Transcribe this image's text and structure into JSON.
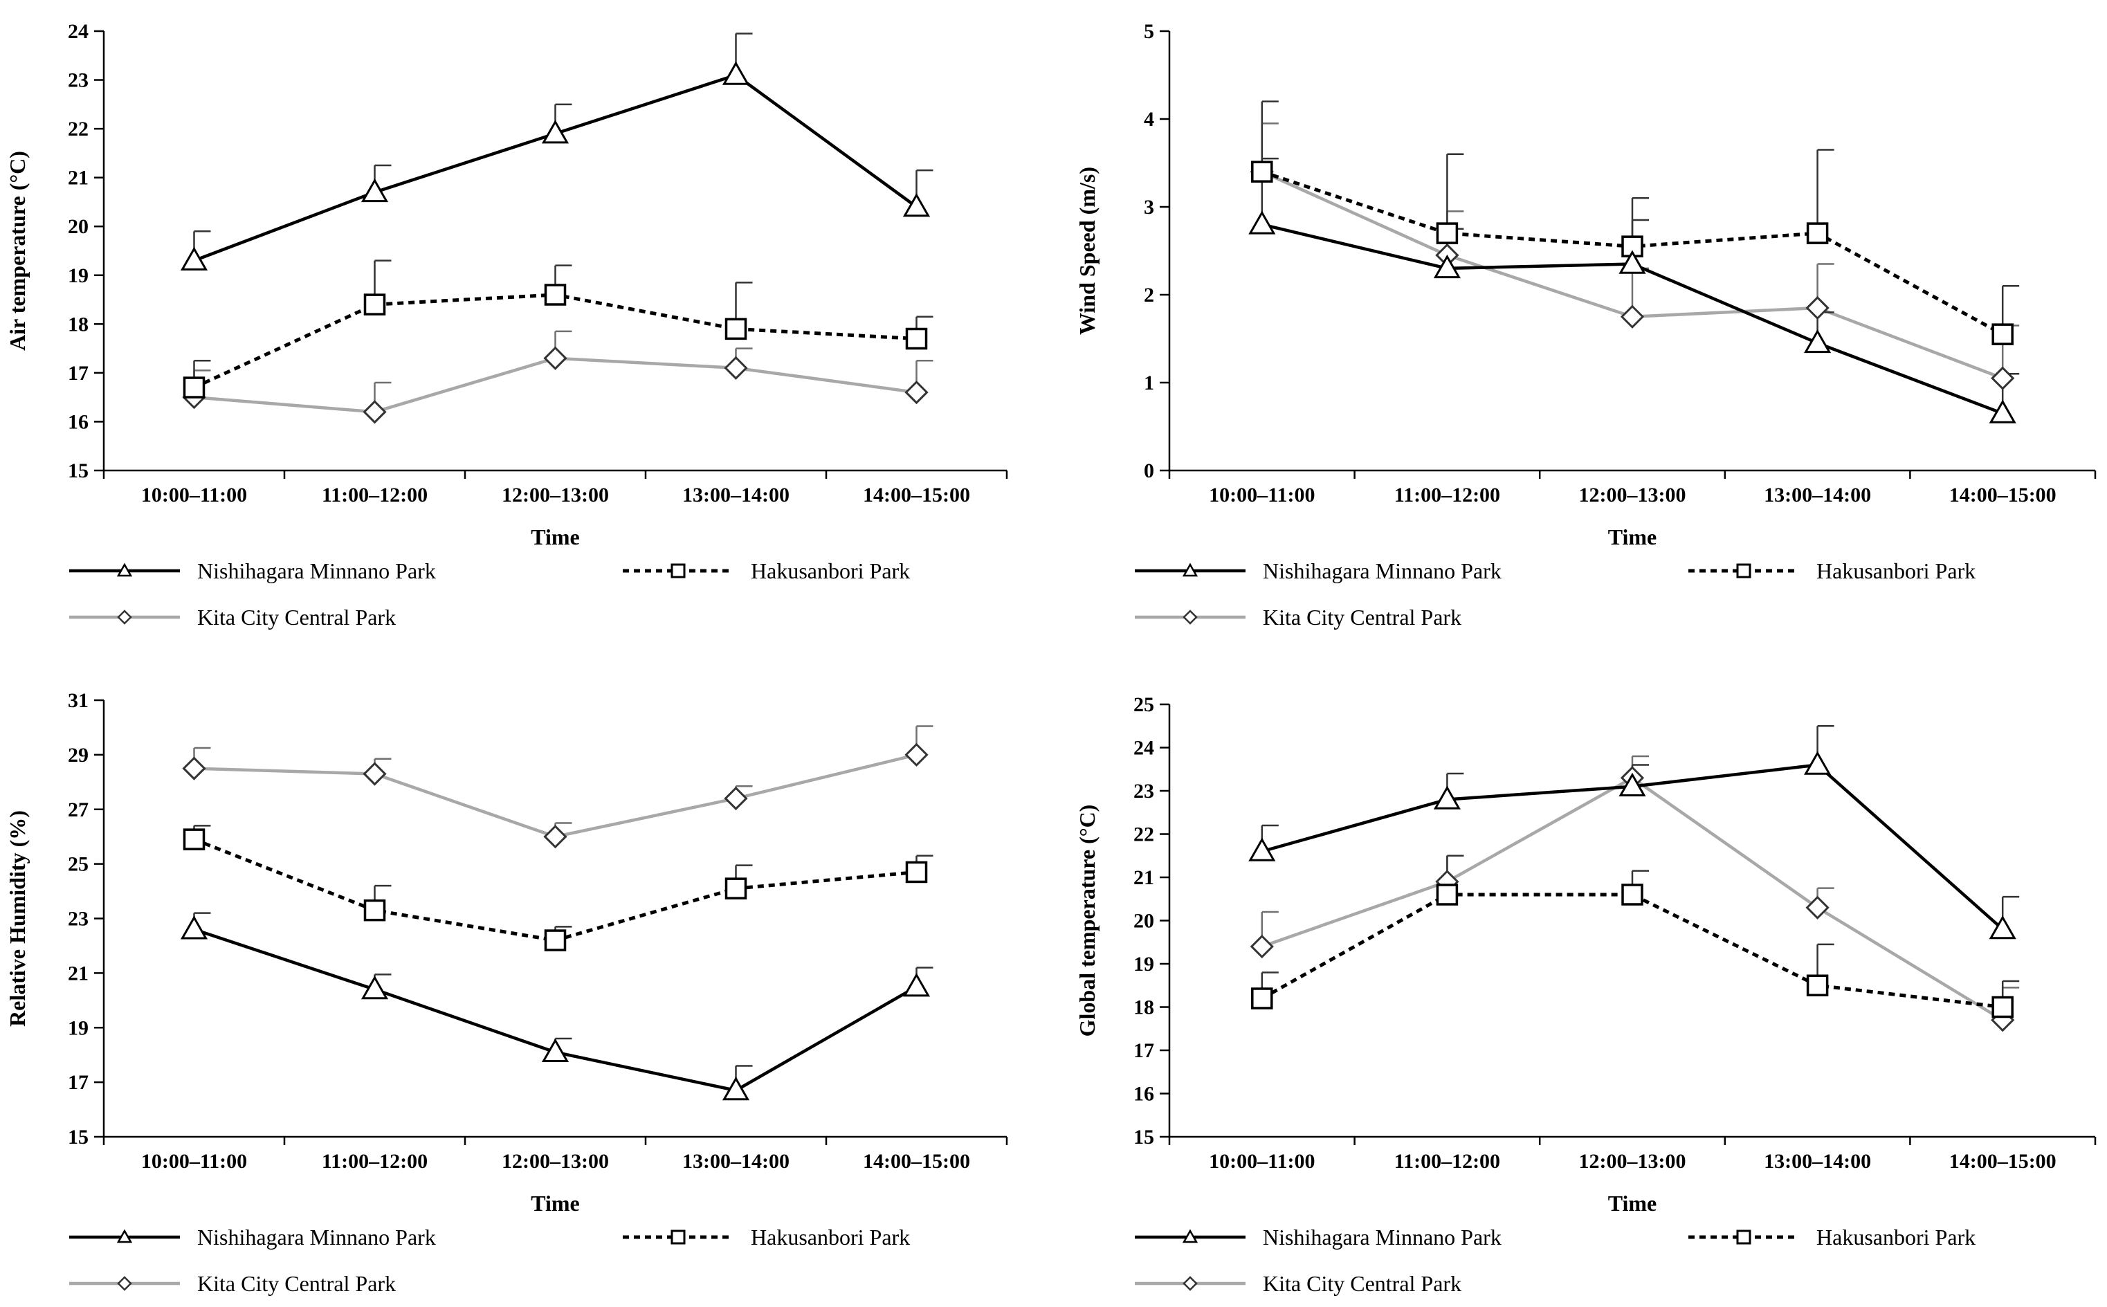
{
  "chart_data": [
    {
      "type": "line",
      "title": "",
      "xlabel": "Time",
      "ylabel": "Air temperature (°C)",
      "categories": [
        "10:00–11:00",
        "11:00–12:00",
        "12:00–13:00",
        "13:00–14:00",
        "14:00–15:00"
      ],
      "ylim": [
        15,
        24
      ],
      "yticks": [
        "15",
        "16",
        "17",
        "18",
        "19",
        "20",
        "21",
        "22",
        "23",
        "24"
      ],
      "series": [
        {
          "name": "Nishihagara Minnano Park",
          "values": [
            19.3,
            20.7,
            21.9,
            23.1,
            20.4
          ],
          "errors": [
            0.6,
            0.55,
            0.6,
            0.85,
            0.75
          ],
          "color": "#000000",
          "style": "solid",
          "marker": "triangle"
        },
        {
          "name": "Hakusanbori Park",
          "values": [
            16.7,
            18.4,
            18.6,
            17.9,
            17.7
          ],
          "errors": [
            0.55,
            0.9,
            0.6,
            0.95,
            0.45
          ],
          "color": "#000000",
          "style": "dotted",
          "marker": "square"
        },
        {
          "name": "Kita City Central Park",
          "values": [
            16.5,
            16.2,
            17.3,
            17.1,
            16.6
          ],
          "errors": [
            0.55,
            0.6,
            0.55,
            0.4,
            0.65
          ],
          "color": "#a8a8a8",
          "style": "solid",
          "marker": "diamond"
        }
      ]
    },
    {
      "type": "line",
      "title": "",
      "xlabel": "Time",
      "ylabel": "Wind Speed (m/s)",
      "categories": [
        "10:00–11:00",
        "11:00–12:00",
        "12:00–13:00",
        "13:00–14:00",
        "14:00–15:00"
      ],
      "ylim": [
        0,
        5
      ],
      "yticks": [
        "0",
        "1",
        "2",
        "3",
        "4",
        "5"
      ],
      "series": [
        {
          "name": "Nishihagara Minnano Park",
          "values": [
            2.8,
            2.3,
            2.35,
            1.45,
            0.65
          ],
          "errors": [
            0.75,
            0.45,
            0.5,
            0.35,
            0.45
          ],
          "color": "#000000",
          "style": "solid",
          "marker": "triangle"
        },
        {
          "name": "Hakusanbori Park",
          "values": [
            3.4,
            2.7,
            2.55,
            2.7,
            1.55
          ],
          "errors": [
            0.8,
            0.9,
            0.55,
            0.95,
            0.55
          ],
          "color": "#000000",
          "style": "dotted",
          "marker": "square"
        },
        {
          "name": "Kita City Central Park",
          "values": [
            3.4,
            2.45,
            1.75,
            1.85,
            1.05
          ],
          "errors": [
            0.55,
            0.5,
            0.55,
            0.5,
            0.6
          ],
          "color": "#a8a8a8",
          "style": "solid",
          "marker": "diamond"
        }
      ]
    },
    {
      "type": "line",
      "title": "",
      "xlabel": "Time",
      "ylabel": "Relative Humidity (%)",
      "categories": [
        "10:00–11:00",
        "11:00–12:00",
        "12:00–13:00",
        "13:00–14:00",
        "14:00–15:00"
      ],
      "ylim": [
        15,
        31
      ],
      "yticks": [
        "15",
        "17",
        "19",
        "21",
        "23",
        "25",
        "27",
        "29",
        "31"
      ],
      "series": [
        {
          "name": "Nishihagara Minnano Park",
          "values": [
            22.6,
            20.4,
            18.1,
            16.7,
            20.5
          ],
          "errors": [
            0.6,
            0.55,
            0.5,
            0.9,
            0.7
          ],
          "color": "#000000",
          "style": "solid",
          "marker": "triangle"
        },
        {
          "name": "Hakusanbori Park",
          "values": [
            25.9,
            23.3,
            22.2,
            24.1,
            24.7
          ],
          "errors": [
            0.5,
            0.9,
            0.5,
            0.85,
            0.6
          ],
          "color": "#000000",
          "style": "dotted",
          "marker": "square"
        },
        {
          "name": "Kita City Central Park",
          "values": [
            28.5,
            28.3,
            26.0,
            27.4,
            29.0
          ],
          "errors": [
            0.75,
            0.55,
            0.5,
            0.45,
            1.05
          ],
          "color": "#a8a8a8",
          "style": "solid",
          "marker": "diamond"
        }
      ]
    },
    {
      "type": "line",
      "title": "",
      "xlabel": "Time",
      "ylabel": "Global temperature (°C)",
      "categories": [
        "10:00–11:00",
        "11:00–12:00",
        "12:00–13:00",
        "13:00–14:00",
        "14:00–15:00"
      ],
      "ylim": [
        15,
        25
      ],
      "yticks": [
        "15",
        "16",
        "17",
        "18",
        "19",
        "20",
        "21",
        "22",
        "23",
        "24",
        "25"
      ],
      "series": [
        {
          "name": "Nishihagara Minnano Park",
          "values": [
            21.6,
            22.8,
            23.1,
            23.6,
            19.8
          ],
          "errors": [
            0.6,
            0.6,
            0.5,
            0.9,
            0.75
          ],
          "color": "#000000",
          "style": "solid",
          "marker": "triangle"
        },
        {
          "name": "Hakusanbori Park",
          "values": [
            18.2,
            20.6,
            20.6,
            18.5,
            18.0
          ],
          "errors": [
            0.6,
            0.9,
            0.55,
            0.95,
            0.6
          ],
          "color": "#000000",
          "style": "dotted",
          "marker": "square"
        },
        {
          "name": "Kita City Central Park",
          "values": [
            19.4,
            20.9,
            23.3,
            20.3,
            17.7
          ],
          "errors": [
            0.8,
            0.6,
            0.5,
            0.45,
            0.75
          ],
          "color": "#a8a8a8",
          "style": "solid",
          "marker": "diamond"
        }
      ]
    }
  ]
}
